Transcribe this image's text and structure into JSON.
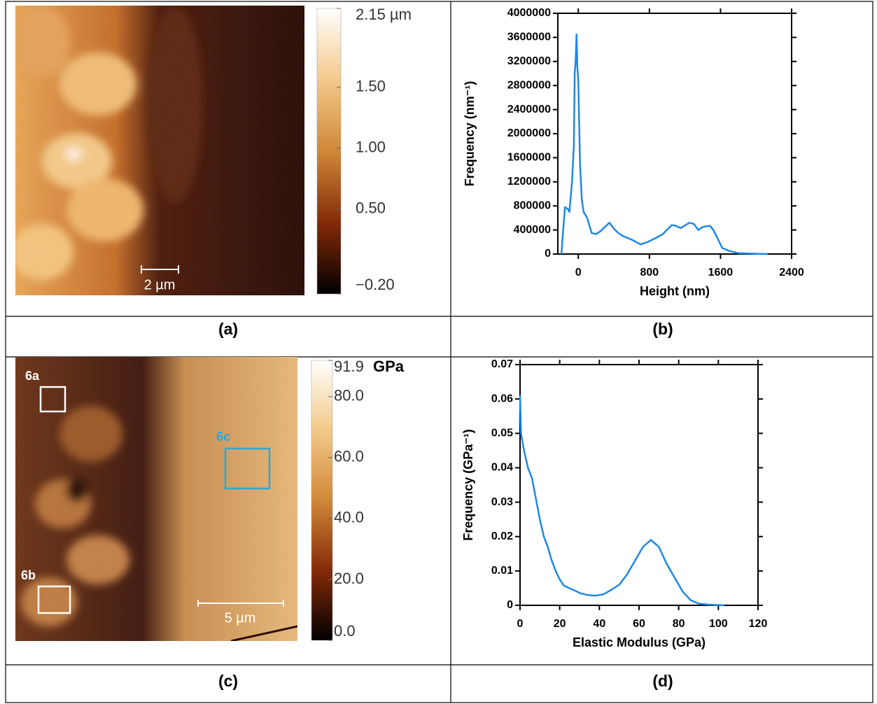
{
  "chart_data": [
    {
      "type": "line",
      "x_label": "Height (nm)",
      "y_label": "Frequency (nm⁻¹)",
      "color": "#1e88e5",
      "x": [
        -190,
        -170,
        -150,
        -120,
        -100,
        -70,
        -50,
        -40,
        -30,
        -20,
        -10,
        0,
        20,
        40,
        60,
        100,
        150,
        200,
        250,
        300,
        350,
        400,
        450,
        500,
        600,
        700,
        780,
        850,
        950,
        1050,
        1100,
        1150,
        1250,
        1300,
        1350,
        1400,
        1480,
        1520,
        1580,
        1620,
        1700,
        1800,
        2000,
        2130
      ],
      "values": [
        0,
        400000,
        780000,
        750000,
        700000,
        1200000,
        1800000,
        3000000,
        3200000,
        3650000,
        3100000,
        2900000,
        1500000,
        900000,
        700000,
        600000,
        350000,
        330000,
        380000,
        450000,
        520000,
        420000,
        350000,
        300000,
        240000,
        160000,
        200000,
        250000,
        330000,
        480000,
        470000,
        430000,
        520000,
        500000,
        400000,
        450000,
        470000,
        400000,
        220000,
        100000,
        50000,
        15000,
        5000,
        0
      ],
      "xlim": [
        -230,
        2400
      ],
      "xticks": [
        0,
        800,
        1600,
        2400
      ],
      "ylim": [
        0,
        4000000
      ],
      "yticks": [
        0,
        400000,
        800000,
        1200000,
        1600000,
        2000000,
        2400000,
        2800000,
        3200000,
        3600000,
        4000000
      ]
    },
    {
      "type": "line",
      "x_label": "Elastic Modulus (GPa)",
      "y_label": "Frequency (GPa⁻¹)",
      "color": "#1e88e5",
      "x": [
        0,
        0.5,
        2,
        4,
        6,
        8,
        10,
        12,
        14,
        16,
        18,
        20,
        22,
        24,
        26,
        28,
        30,
        34,
        38,
        42,
        46,
        50,
        54,
        58,
        62,
        64,
        66,
        68,
        70,
        74,
        78,
        82,
        86,
        90,
        95,
        103
      ],
      "values": [
        0.061,
        0.05,
        0.045,
        0.04,
        0.037,
        0.031,
        0.025,
        0.02,
        0.017,
        0.013,
        0.01,
        0.0075,
        0.0058,
        0.0052,
        0.0047,
        0.0042,
        0.0036,
        0.003,
        0.0028,
        0.0032,
        0.0045,
        0.006,
        0.009,
        0.013,
        0.017,
        0.018,
        0.019,
        0.018,
        0.017,
        0.012,
        0.008,
        0.004,
        0.0015,
        0.0005,
        0.0002,
        0
      ],
      "xlim": [
        0,
        120
      ],
      "xticks": [
        0,
        20,
        40,
        60,
        80,
        100,
        120
      ],
      "ylim": [
        0,
        0.07
      ],
      "yticks": [
        0,
        0.01,
        0.02,
        0.03,
        0.04,
        0.05,
        0.06,
        0.07
      ]
    }
  ],
  "images": [
    {
      "scale_bar": "2 µm",
      "colorbar": {
        "clim": [
          -0.2,
          2.15
        ],
        "ticks": [
          {
            "value": 2.15,
            "label": "2.15 µm"
          },
          {
            "value": 1.5,
            "label": "1.50"
          },
          {
            "value": 1,
            "label": "1.00"
          },
          {
            "value": 0.5,
            "label": "0.50"
          },
          {
            "value": -0.2,
            "label": "−0.20"
          }
        ]
      }
    },
    {
      "scale_bar": "5 µm",
      "regions": [
        "6a",
        "6b",
        "6c"
      ],
      "colorbar": {
        "clim": [
          0,
          91.9
        ],
        "unit": "GPa",
        "ticks": [
          91.9,
          {
            "value": 80,
            "label": "80.0"
          },
          {
            "value": 60,
            "label": "60.0"
          },
          {
            "value": 40,
            "label": "40.0"
          },
          {
            "value": 20,
            "label": "20.0"
          },
          {
            "value": 0,
            "label": "0.0"
          }
        ]
      }
    }
  ],
  "captions": [
    "(a)",
    "(b)",
    "(c)",
    "(d)"
  ]
}
